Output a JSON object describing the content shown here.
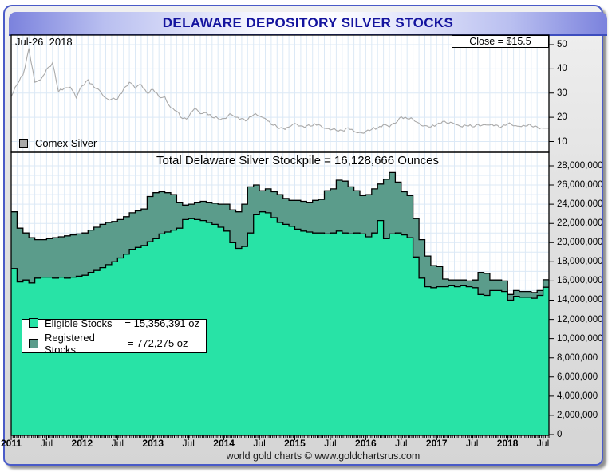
{
  "window_title": "DELAWARE DEPOSITORY SILVER STOCKS",
  "top_panel": {
    "date_label": "Jul-26  2018",
    "close_label": "Close = $15.5",
    "legend_label": "Comex Silver",
    "legend_color": "#a9a9a9"
  },
  "main_panel": {
    "title": "Total Delaware Silver Stockpile = 16,128,666 Ounces",
    "legend": [
      {
        "label": "Eligible Stocks",
        "value": "= 15,356,391 oz",
        "color": "#28e3a6"
      },
      {
        "label": "Registered Stocks",
        "value": "= 772,275 oz",
        "color": "#5b9c8b"
      }
    ]
  },
  "footer": "world gold charts © www.goldchartsrus.com",
  "axes": {
    "price_ticks": [
      10,
      20,
      30,
      40,
      50
    ],
    "stock_ticks_millions": [
      0,
      2,
      4,
      6,
      8,
      10,
      12,
      14,
      16,
      18,
      20,
      22,
      24,
      26,
      28
    ],
    "x_labels": [
      {
        "t": "2011",
        "i": 0,
        "bold": true
      },
      {
        "t": "Jul",
        "i": 6,
        "bold": false
      },
      {
        "t": "2012",
        "i": 12,
        "bold": true
      },
      {
        "t": "Jul",
        "i": 18,
        "bold": false
      },
      {
        "t": "2013",
        "i": 24,
        "bold": true
      },
      {
        "t": "Jul",
        "i": 30,
        "bold": false
      },
      {
        "t": "2014",
        "i": 36,
        "bold": true
      },
      {
        "t": "Jul",
        "i": 42,
        "bold": false
      },
      {
        "t": "2015",
        "i": 48,
        "bold": true
      },
      {
        "t": "Jul",
        "i": 54,
        "bold": false
      },
      {
        "t": "2016",
        "i": 60,
        "bold": true
      },
      {
        "t": "Jul",
        "i": 66,
        "bold": false
      },
      {
        "t": "2017",
        "i": 72,
        "bold": true
      },
      {
        "t": "Jul",
        "i": 78,
        "bold": false
      },
      {
        "t": "2018",
        "i": 84,
        "bold": true
      },
      {
        "t": "Jul",
        "i": 90,
        "bold": false
      }
    ]
  },
  "chart_data": [
    {
      "type": "line",
      "name": "Comex Silver",
      "x_start": "2011-01",
      "x_end": "2018-07",
      "interval": "monthly",
      "unit": "USD per oz",
      "ylim": [
        6,
        54
      ],
      "close": 15.5,
      "color": "#a9a9a9",
      "values": [
        28.5,
        33.5,
        37.5,
        48.5,
        34.5,
        35.5,
        40,
        42.5,
        30.5,
        32,
        32.5,
        28,
        33,
        35.5,
        32.5,
        31,
        28,
        27.5,
        27.5,
        31.5,
        34.5,
        32,
        33.5,
        30,
        31.5,
        28.5,
        28.5,
        24,
        22.5,
        19.5,
        20,
        23.5,
        21.5,
        22,
        20,
        19.5,
        19.5,
        21.5,
        20,
        19.5,
        19,
        21,
        20.5,
        19.5,
        17,
        16,
        15.5,
        16,
        17.5,
        16.5,
        16.5,
        16.5,
        17,
        15.5,
        14.8,
        14.6,
        14.6,
        15.7,
        14.2,
        13.8,
        14.2,
        15,
        15.5,
        17,
        16,
        17.5,
        20.3,
        19.5,
        19.2,
        17.6,
        16.6,
        16,
        17,
        18.3,
        17.4,
        17.3,
        16.3,
        16.6,
        16.1,
        17.1,
        17,
        16.8,
        16.9,
        16.1,
        17.2,
        16.5,
        16.3,
        16.4,
        16.5,
        16.1,
        15.5
      ]
    },
    {
      "type": "area",
      "stacked": true,
      "x_start": "2011-01",
      "x_end": "2018-07",
      "interval": "monthly",
      "unit": "million ounces",
      "ylim": [
        0,
        29.4
      ],
      "title": "Total Delaware Silver Stockpile = 16,128,666 Ounces",
      "latest": {
        "eligible_oz": 15356391,
        "registered_oz": 772275,
        "total_oz": 16128666
      },
      "series": [
        {
          "name": "Eligible Stocks",
          "color": "#28e3a6",
          "values": [
            17.3,
            15.9,
            16.1,
            15.8,
            16.3,
            16.4,
            16.4,
            16.3,
            16.4,
            16.3,
            16.4,
            16.5,
            16.6,
            16.9,
            17.1,
            17.4,
            17.7,
            18.0,
            18.4,
            18.8,
            19.3,
            19.5,
            19.7,
            20.1,
            20.4,
            20.9,
            21.1,
            21.3,
            21.5,
            22.4,
            22.5,
            22.4,
            22.3,
            22.1,
            21.9,
            21.6,
            21.2,
            20.0,
            19.4,
            19.6,
            21.0,
            22.9,
            23.2,
            23.1,
            22.6,
            22.1,
            21.9,
            21.7,
            21.4,
            21.2,
            21.1,
            21.0,
            21.0,
            20.9,
            21.0,
            21.2,
            21.0,
            20.9,
            21.0,
            20.9,
            20.6,
            21.0,
            22.3,
            20.4,
            20.9,
            21.0,
            20.8,
            20.5,
            18.5,
            16.3,
            15.4,
            15.3,
            15.4,
            15.4,
            15.5,
            15.4,
            15.5,
            15.4,
            15.3,
            14.6,
            14.5,
            15.0,
            15.0,
            14.9,
            14.0,
            14.4,
            14.3,
            14.3,
            14.2,
            14.5,
            15.356
          ]
        },
        {
          "name": "Registered Stocks",
          "color": "#5b9c8b",
          "values": [
            5.9,
            5.6,
            4.9,
            4.7,
            4.0,
            3.9,
            4.0,
            4.2,
            4.2,
            4.4,
            4.4,
            4.4,
            4.4,
            4.4,
            4.5,
            4.5,
            4.4,
            4.2,
            4.0,
            3.9,
            3.8,
            3.8,
            3.8,
            4.7,
            4.8,
            4.4,
            4.1,
            3.7,
            2.7,
            1.5,
            1.5,
            1.8,
            2.0,
            2.1,
            2.2,
            2.4,
            2.8,
            3.4,
            3.8,
            4.4,
            4.8,
            3.1,
            2.2,
            2.5,
            2.7,
            2.9,
            2.7,
            2.7,
            3.0,
            3.1,
            3.1,
            3.4,
            3.5,
            4.5,
            4.6,
            5.3,
            5.4,
            4.9,
            4.4,
            4.0,
            4.4,
            4.6,
            3.8,
            6.2,
            6.4,
            5.3,
            4.5,
            4.4,
            4.0,
            4.0,
            3.2,
            2.3,
            2.1,
            0.8,
            0.6,
            0.7,
            0.6,
            0.6,
            0.8,
            2.3,
            2.3,
            1.1,
            1.1,
            1.1,
            0.6,
            0.6,
            0.6,
            0.6,
            0.6,
            0.5,
            0.772
          ]
        }
      ]
    }
  ]
}
